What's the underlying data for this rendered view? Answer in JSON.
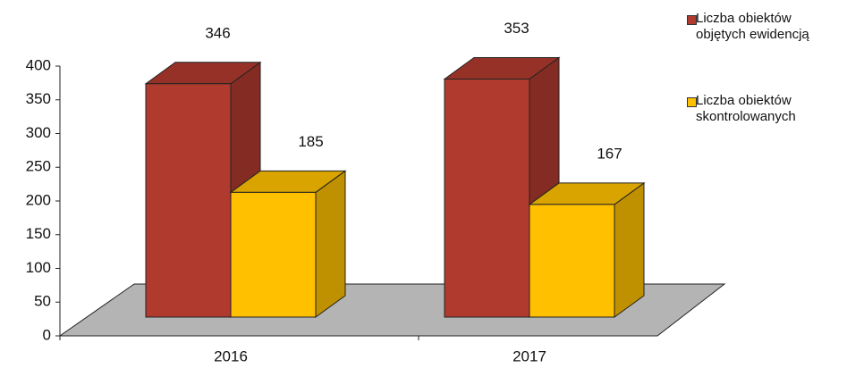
{
  "chart_data": {
    "type": "bar3d",
    "categories": [
      "2016",
      "2017"
    ],
    "series": [
      {
        "name": "Liczba obiektów objętych ewidencją",
        "color": "#b03a2e",
        "values": [
          346,
          353
        ]
      },
      {
        "name": "Liczba obiektów skontrolowanych",
        "color": "#ffc000",
        "values": [
          185,
          167
        ]
      }
    ],
    "ylim": [
      0,
      400
    ],
    "yticks": [
      0,
      50,
      100,
      150,
      200,
      250,
      300,
      350,
      400
    ],
    "legend": "right"
  }
}
